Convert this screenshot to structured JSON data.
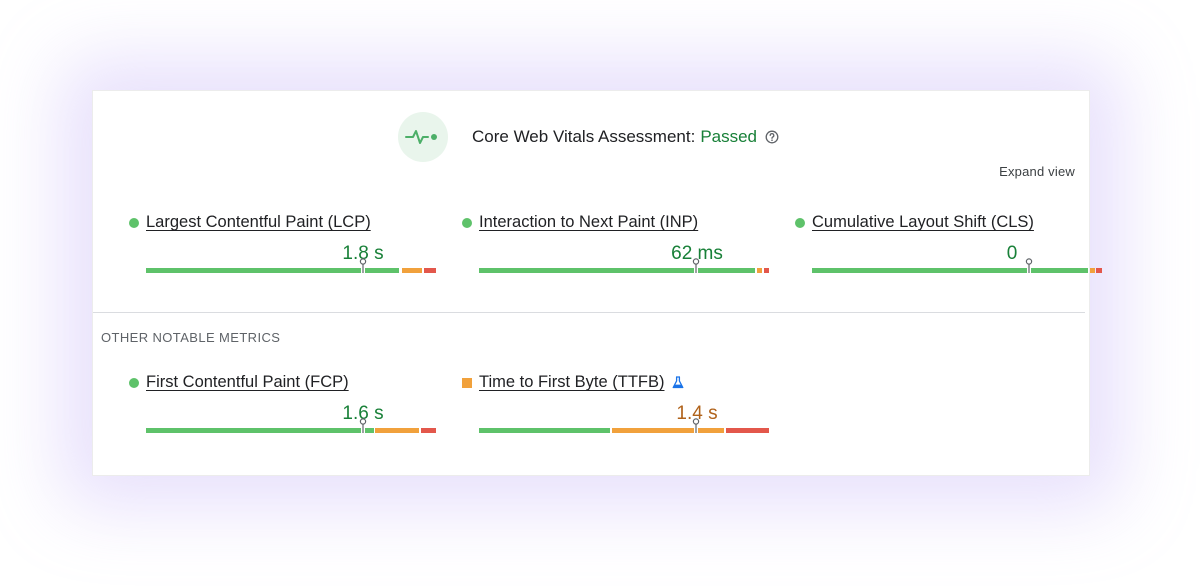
{
  "header": {
    "icon": "vitals-pulse-icon",
    "title": "Core Web Vitals Assessment:",
    "status": "Passed",
    "status_color": "#188038",
    "help_icon": "help-circle-icon"
  },
  "expand_view": "Expand view",
  "colors": {
    "good": "#5ec26a",
    "needs_improvement": "#f1a13c",
    "poor": "#e3574b"
  },
  "core_metrics": [
    {
      "label": "Largest Contentful Paint (LCP)",
      "value": "1.8 s",
      "rating": "good"
    },
    {
      "label": "Interaction to Next Paint (INP)",
      "value": "62 ms",
      "rating": "good"
    },
    {
      "label": "Cumulative Layout Shift (CLS)",
      "value": "0",
      "rating": "good"
    }
  ],
  "other_section_label": "OTHER NOTABLE METRICS",
  "other_metrics": [
    {
      "label": "First Contentful Paint (FCP)",
      "value": "1.6 s",
      "rating": "good"
    },
    {
      "label": "Time to First Byte (TTFB)",
      "value": "1.4 s",
      "rating": "needs-improvement",
      "experimental_icon": "flask-icon"
    }
  ]
}
